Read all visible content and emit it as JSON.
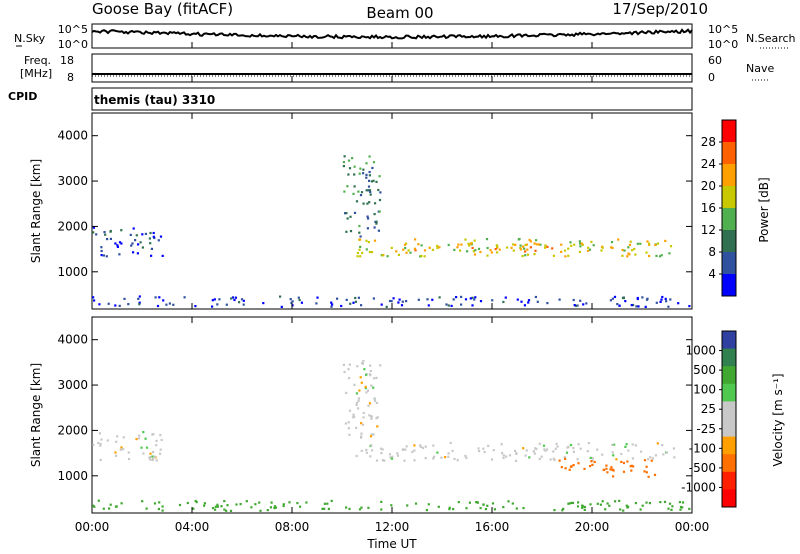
{
  "header": {
    "station": "Goose Bay (fitACF)",
    "beam": "Beam 00",
    "date": "17/Sep/2010"
  },
  "status_panels": {
    "nsky": {
      "label": "N.Sky",
      "ticks": [
        "10^5",
        "10^0"
      ]
    },
    "nsearch": {
      "label": "N.Search",
      "ticks": [
        "10^5",
        "10^0"
      ]
    },
    "freq": {
      "label_top": "Freq.",
      "label_bottom": "[MHz]",
      "ticks": [
        "18",
        "8"
      ]
    },
    "nave": {
      "label": "Nave",
      "ticks": [
        "60",
        "0"
      ]
    },
    "cpid": {
      "label": "CPID",
      "program": "themis (tau) 3310"
    }
  },
  "axes": {
    "ylabel": "Slant Range [km]",
    "xlabel": "Time UT",
    "ylim": [
      180,
      4500
    ],
    "yticks": [
      1000,
      2000,
      3000,
      4000
    ],
    "xlim": [
      0,
      24
    ],
    "xticks": [
      "00:00",
      "04:00",
      "08:00",
      "12:00",
      "16:00",
      "20:00",
      "00:00"
    ]
  },
  "colors": {
    "power": [
      "#0000ff",
      "#3050a0",
      "#307050",
      "#50b050",
      "#c8c800",
      "#ffa000",
      "#ff6000",
      "#ff0000"
    ],
    "velocity": [
      "#3040a0",
      "#308050",
      "#40a830",
      "#50c850",
      "#c8c8c8",
      "#c8c8c8",
      "#ffa000",
      "#ff7000",
      "#ff2000",
      "#ff0000"
    ]
  },
  "chart_data": [
    {
      "type": "heatmap",
      "panel": "power",
      "colorbar_label": "Power [dB]",
      "colorbar_ticks": [
        "4",
        "8",
        "12",
        "16",
        "20",
        "24",
        "28"
      ],
      "x": "time (hours UT)",
      "y": "slant range (km)",
      "regions": [
        {
          "x": [
            0.0,
            24.0
          ],
          "y": [
            250,
            480
          ],
          "value": 4
        },
        {
          "x": [
            0.0,
            2.8
          ],
          "y": [
            1350,
            2000
          ],
          "value": 6
        },
        {
          "x": [
            10.0,
            11.5
          ],
          "y": [
            1800,
            3600
          ],
          "value": 10
        },
        {
          "x": [
            10.5,
            23.3
          ],
          "y": [
            1350,
            1750
          ],
          "value": 18
        },
        {
          "x": [
            12.0,
            19.0
          ],
          "y": [
            1450,
            1650
          ],
          "value": 22
        }
      ]
    },
    {
      "type": "heatmap",
      "panel": "velocity",
      "colorbar_label": "Velocity [m s⁻¹]",
      "colorbar_ticks": [
        "1000",
        "500",
        "100",
        "25",
        "-25",
        "-100",
        "-500",
        "-1000"
      ],
      "x": "time (hours UT)",
      "y": "slant range (km)",
      "regions": [
        {
          "x": [
            0.0,
            24.0
          ],
          "y": [
            250,
            480
          ],
          "value": 100
        },
        {
          "x": [
            0.0,
            2.8
          ],
          "y": [
            1350,
            2000
          ],
          "value": 0
        },
        {
          "x": [
            10.0,
            11.5
          ],
          "y": [
            1800,
            3600
          ],
          "value": 0
        },
        {
          "x": [
            10.5,
            23.3
          ],
          "y": [
            1350,
            1750
          ],
          "value": 0
        },
        {
          "x": [
            18.5,
            22.5
          ],
          "y": [
            1000,
            1400
          ],
          "value": -300
        }
      ]
    }
  ]
}
